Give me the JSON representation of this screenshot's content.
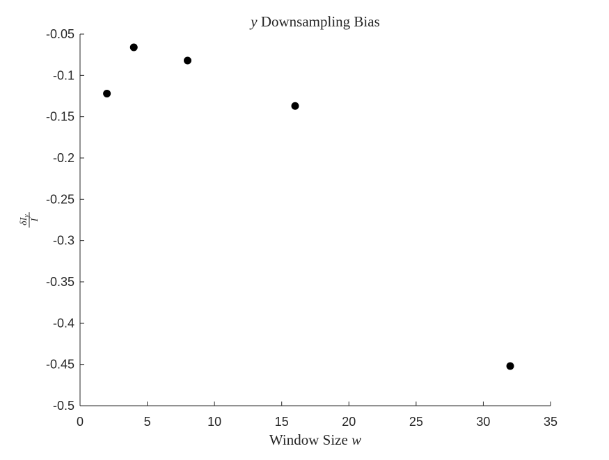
{
  "chart_data": {
    "type": "scatter",
    "title": {
      "prefix": "y",
      "rest": " Downsampling Bias"
    },
    "xlabel": {
      "text": "Window Size ",
      "var": "w"
    },
    "ylabel": {
      "numerator": "δI",
      "subscript": "y",
      "denominator": "I"
    },
    "xlim": [
      0,
      35
    ],
    "ylim": [
      -0.5,
      -0.05
    ],
    "xticks": [
      0,
      5,
      10,
      15,
      20,
      25,
      30,
      35
    ],
    "xtick_labels": [
      "0",
      "5",
      "10",
      "15",
      "20",
      "25",
      "30",
      "35"
    ],
    "yticks": [
      -0.05,
      -0.1,
      -0.15,
      -0.2,
      -0.25,
      -0.3,
      -0.35,
      -0.4,
      -0.45,
      -0.5
    ],
    "ytick_labels": [
      "-0.05",
      "-0.1",
      "-0.15",
      "-0.2",
      "-0.25",
      "-0.3",
      "-0.35",
      "-0.4",
      "-0.45",
      "-0.5"
    ],
    "grid": false,
    "marker_color": "#000000",
    "axis_color": "#262626",
    "x": [
      2,
      4,
      8,
      16,
      32
    ],
    "y": [
      -0.122,
      -0.066,
      -0.082,
      -0.137,
      -0.452
    ]
  }
}
